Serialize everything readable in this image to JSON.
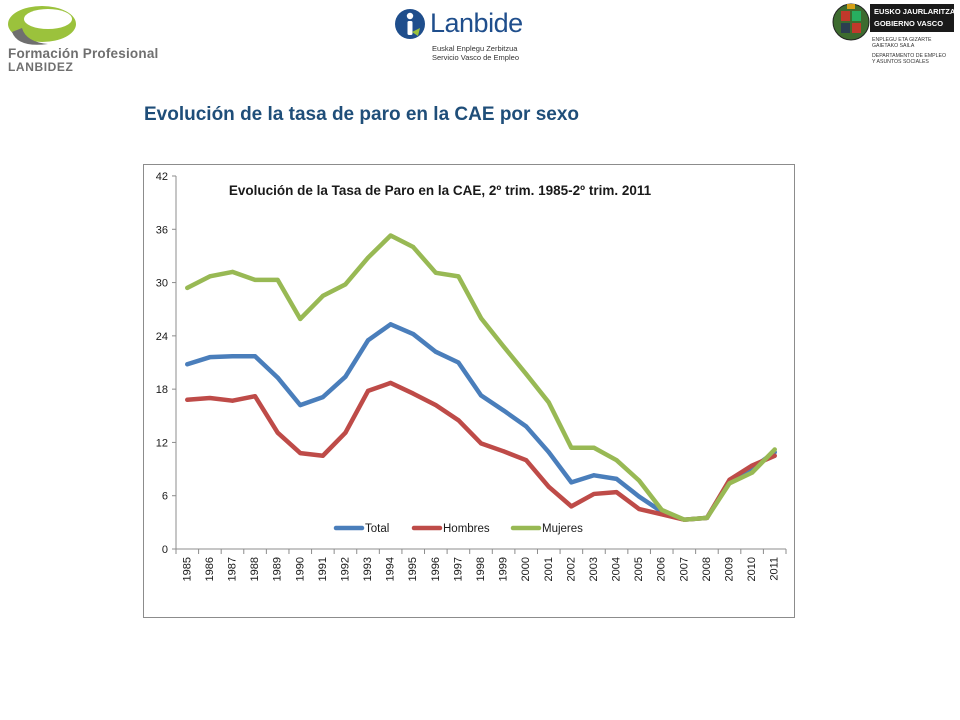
{
  "header": {
    "fp_logo": {
      "line1": "Formación Profesional",
      "line2": "LANBIDEZ",
      "green": "#9bc23c",
      "gray": "#6f6f6f"
    },
    "lanbide_logo": {
      "name": "Lanbide",
      "subtitle1": "Euskal Enplegu Zerbitzua",
      "subtitle2": "Servicio Vasco de Empleo",
      "color": "#1f4e8c"
    },
    "gv_logo": {
      "line1": "EUSKO JAURLARITZA",
      "line2": "GOBIERNO VASCO",
      "small1": "ENPLEGU ETA GIZARTE",
      "small2": "GAIETAKO SAILA",
      "small3": "DEPARTAMENTO DE EMPLEO",
      "small4": "Y ASUNTOS SOCIALES"
    }
  },
  "slide": {
    "title": "Evolución de la tasa de paro en la CAE por sexo"
  },
  "chart_data": {
    "type": "line",
    "title": "Evolución de la Tasa de Paro en la CAE, 2º trim. 1985-2º trim. 2011",
    "xlabel": "",
    "ylabel": "",
    "ylim": [
      0,
      42
    ],
    "yticks": [
      0,
      6,
      12,
      18,
      24,
      30,
      36,
      42
    ],
    "legend_position": "bottom-center",
    "categories": [
      "1985",
      "1986",
      "1987",
      "1988",
      "1989",
      "1990",
      "1991",
      "1992",
      "1993",
      "1994",
      "1995",
      "1996",
      "1997",
      "1998",
      "1999",
      "2000",
      "2001",
      "2002",
      "2003",
      "2004",
      "2005",
      "2006",
      "2007",
      "2008",
      "2009",
      "2010",
      "2011"
    ],
    "series": [
      {
        "name": "Total",
        "color": "#4a7ebb",
        "values": [
          20.8,
          21.6,
          21.7,
          21.7,
          19.3,
          16.2,
          17.1,
          19.4,
          23.5,
          25.3,
          24.2,
          22.2,
          21.0,
          17.3,
          15.6,
          13.8,
          10.9,
          7.5,
          8.3,
          7.9,
          5.9,
          4.2,
          3.3,
          3.5,
          7.7,
          9.1,
          10.9
        ]
      },
      {
        "name": "Hombres",
        "color": "#be4b48",
        "values": [
          16.8,
          17.0,
          16.7,
          17.2,
          13.1,
          10.8,
          10.5,
          13.1,
          17.8,
          18.7,
          17.5,
          16.2,
          14.5,
          11.9,
          11.0,
          10.0,
          7.0,
          4.8,
          6.2,
          6.4,
          4.5,
          3.9,
          3.3,
          3.5,
          7.8,
          9.4,
          10.5
        ]
      },
      {
        "name": "Mujeres",
        "color": "#98b954",
        "values": [
          29.4,
          30.7,
          31.2,
          30.3,
          30.3,
          25.9,
          28.5,
          29.8,
          32.8,
          35.3,
          34.0,
          31.1,
          30.7,
          26.0,
          22.8,
          19.7,
          16.5,
          11.4,
          11.4,
          10.0,
          7.7,
          4.4,
          3.3,
          3.5,
          7.4,
          8.6,
          11.2
        ]
      }
    ]
  }
}
